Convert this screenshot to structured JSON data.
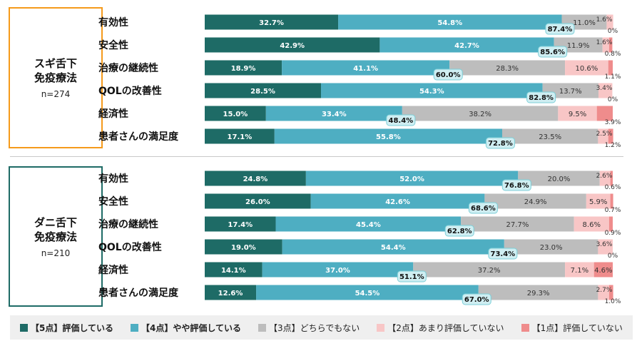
{
  "groups": [
    {
      "title_line1": "スギ舌下",
      "title_line2": "免疫療法",
      "n": "n=274",
      "border_color": "#f59a1b"
    },
    {
      "title_line1": "ダニ舌下",
      "title_line2": "免疫療法",
      "n": "n=210",
      "border_color": "#1e6b66"
    }
  ],
  "legend": [
    {
      "label": "【5点】評価している",
      "color": "#1e6b66",
      "bold": true
    },
    {
      "label": "【4点】やや評価している",
      "color": "#4eaec2",
      "bold": true
    },
    {
      "label": "【3点】どちらでもない",
      "color": "#bdbdbd",
      "bold": false
    },
    {
      "label": "【2点】あまり評価していない",
      "color": "#f8c6c6",
      "bold": false
    },
    {
      "label": "【1点】評価していない",
      "color": "#ef8c8c",
      "bold": false
    }
  ],
  "chart_data": [
    {
      "type": "bar",
      "orientation": "horizontal",
      "stacked": true,
      "group": "スギ舌下免疫療法 n=274",
      "categories": [
        "有効性",
        "安全性",
        "治療の継続性",
        "QOLの改善性",
        "経済性",
        "患者さんの満足度"
      ],
      "series": [
        {
          "name": "【5点】評価している",
          "values": [
            32.7,
            42.9,
            18.9,
            28.5,
            15.0,
            17.1
          ]
        },
        {
          "name": "【4点】やや評価している",
          "values": [
            54.8,
            42.7,
            41.1,
            54.3,
            33.4,
            55.8
          ]
        },
        {
          "name": "【3点】どちらでもない",
          "values": [
            11.0,
            11.9,
            28.3,
            13.7,
            38.2,
            23.5
          ]
        },
        {
          "name": "【2点】あまり評価していない",
          "values": [
            1.6,
            1.6,
            10.6,
            3.4,
            9.5,
            2.5
          ]
        },
        {
          "name": "【1点】評価していない",
          "values": [
            0,
            0.8,
            1.1,
            0,
            3.9,
            1.2
          ]
        }
      ],
      "top2_labels": [
        "87.4%",
        "85.6%",
        "60.0%",
        "82.8%",
        "48.4%",
        "72.8%"
      ],
      "top2": [
        87.4,
        85.6,
        60.0,
        82.8,
        48.4,
        72.8
      ],
      "xlim": [
        0,
        100
      ]
    },
    {
      "type": "bar",
      "orientation": "horizontal",
      "stacked": true,
      "group": "ダニ舌下免疫療法 n=210",
      "categories": [
        "有効性",
        "安全性",
        "治療の継続性",
        "QOLの改善性",
        "経済性",
        "患者さんの満足度"
      ],
      "series": [
        {
          "name": "【5点】評価している",
          "values": [
            24.8,
            26.0,
            17.4,
            19.0,
            14.1,
            12.6
          ]
        },
        {
          "name": "【4点】やや評価している",
          "values": [
            52.0,
            42.6,
            45.4,
            54.4,
            37.0,
            54.5
          ]
        },
        {
          "name": "【3点】どちらでもない",
          "values": [
            20.0,
            24.9,
            27.7,
            23.0,
            37.2,
            29.3
          ]
        },
        {
          "name": "【2点】あまり評価していない",
          "values": [
            2.6,
            5.9,
            8.6,
            3.6,
            7.1,
            2.7
          ]
        },
        {
          "name": "【1点】評価していない",
          "values": [
            0.6,
            0.7,
            0.9,
            0,
            4.6,
            1.0
          ]
        }
      ],
      "top2_labels": [
        "76.8%",
        "68.6%",
        "62.8%",
        "73.4%",
        "51.1%",
        "67.0%"
      ],
      "top2": [
        76.8,
        68.6,
        62.8,
        73.4,
        51.1,
        67.0
      ],
      "xlim": [
        0,
        100
      ]
    }
  ],
  "colors": {
    "top2_badge_bg": "#cfeef2",
    "top2_badge_border": "#7ccfd8",
    "segment_text_light": "#ffffff",
    "segment_text_dark": "#333333"
  }
}
